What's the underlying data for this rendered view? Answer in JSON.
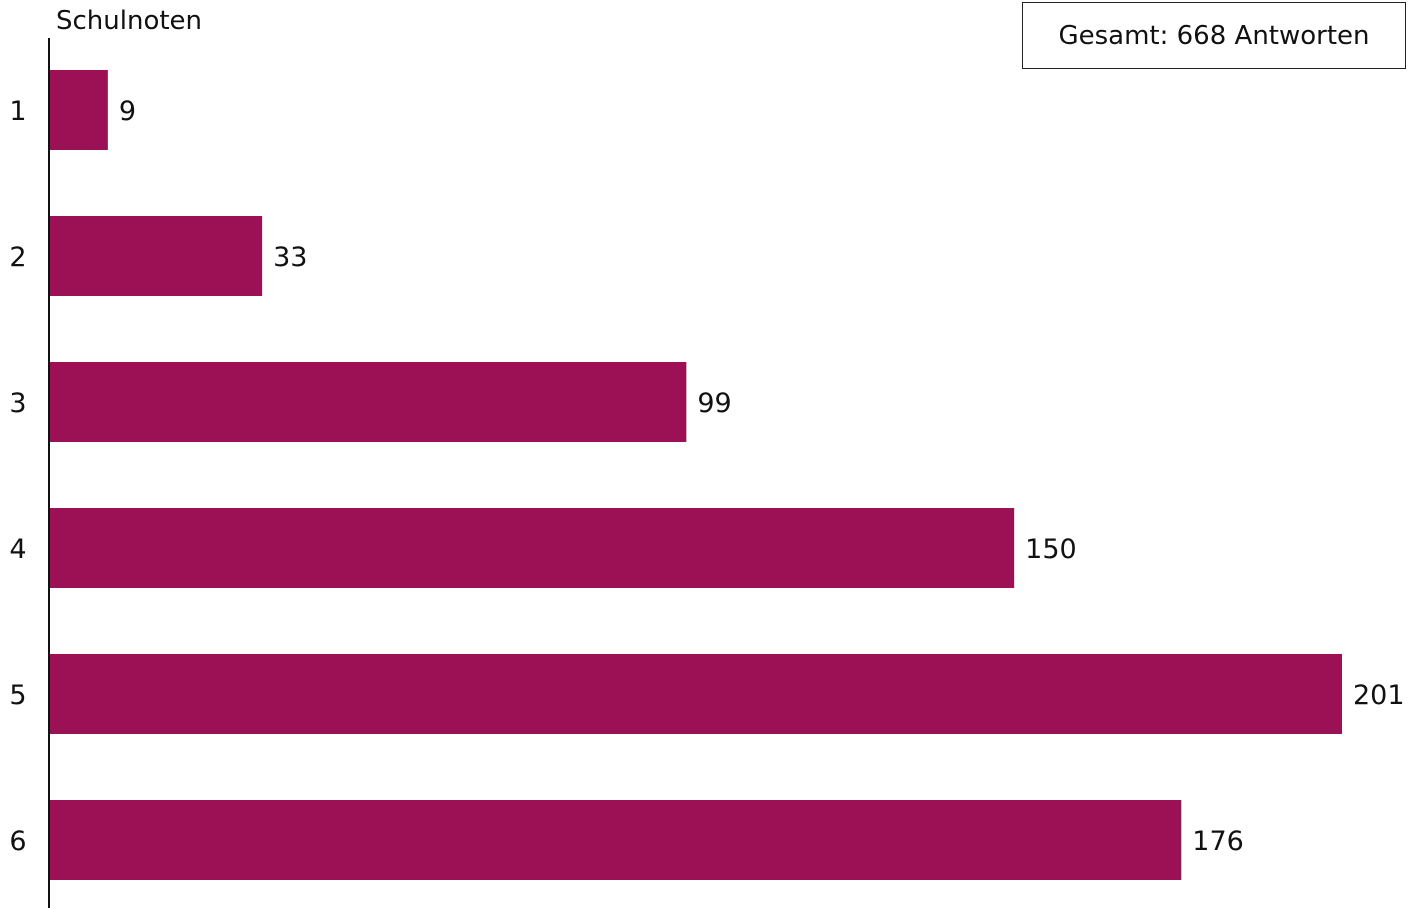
{
  "chart_data": {
    "type": "bar",
    "orientation": "horizontal",
    "ylabel": "Schulnoten",
    "annotation": "Gesamt: 668 Antworten",
    "categories": [
      "1",
      "2",
      "3",
      "4",
      "5",
      "6"
    ],
    "values": [
      9,
      33,
      99,
      150,
      201,
      176
    ],
    "xlim": [
      0,
      201
    ],
    "grid": false,
    "bar_color": "#9C1056"
  }
}
